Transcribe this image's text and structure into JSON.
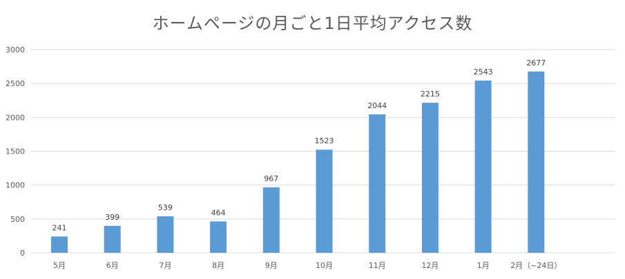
{
  "chart_data": {
    "type": "bar",
    "title": "ホームページの月ごと1日平均アクセス数",
    "xlabel": "",
    "ylabel": "",
    "categories": [
      "5月",
      "6月",
      "7月",
      "8月",
      "9月",
      "10月",
      "11月",
      "12月",
      "1月",
      "2月（~24日）"
    ],
    "values": [
      241,
      399,
      539,
      464,
      967,
      1523,
      2044,
      2215,
      2543,
      2677
    ],
    "ylim": [
      0,
      3000
    ],
    "yticks": [
      0,
      500,
      1000,
      1500,
      2000,
      2500,
      3000
    ],
    "grid": true,
    "bar_color": "#5b9bd5",
    "grid_color": "#d9d9d9",
    "legend": "none",
    "data_labels": true
  }
}
